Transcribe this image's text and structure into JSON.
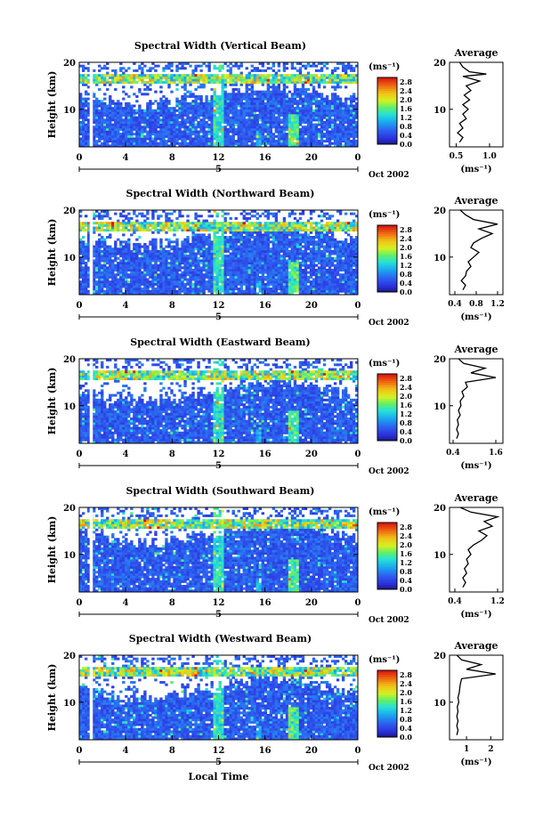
{
  "chart_data": [
    {
      "type": "heatmap",
      "title": "Spectral Width (Vertical Beam)",
      "ylabel": "Height (km)",
      "xlabel": "",
      "x_ticks": [
        "0",
        "4",
        "8",
        "12",
        "16",
        "20",
        "0"
      ],
      "y_ticks": [
        "10",
        "20"
      ],
      "xlim": [
        0,
        24
      ],
      "ylim": [
        2,
        20
      ],
      "date_marker": "5",
      "date_label": "Oct 2002",
      "colorbar": {
        "unit": "(ms⁻¹)",
        "ticks": [
          "0.0",
          "0.4",
          "0.8",
          "1.2",
          "1.6",
          "2.0",
          "2.4",
          "2.8"
        ],
        "min": 0.0,
        "max": 3.0
      },
      "average": {
        "title": "Average",
        "xlabel": "(ms⁻¹)",
        "x_ticks": [
          "0.5",
          "1.0"
        ],
        "xlim": [
          0.4,
          1.2
        ],
        "y_ticks": [
          "10",
          "20"
        ],
        "profile": [
          [
            0.55,
            3
          ],
          [
            0.6,
            4
          ],
          [
            0.52,
            5
          ],
          [
            0.6,
            6
          ],
          [
            0.55,
            7
          ],
          [
            0.65,
            8
          ],
          [
            0.6,
            9
          ],
          [
            0.68,
            10
          ],
          [
            0.6,
            11
          ],
          [
            0.7,
            12
          ],
          [
            0.62,
            13
          ],
          [
            0.72,
            14
          ],
          [
            0.65,
            15
          ],
          [
            0.85,
            16
          ],
          [
            0.6,
            17
          ],
          [
            0.95,
            17.5
          ],
          [
            0.7,
            18
          ],
          [
            0.6,
            19
          ],
          [
            0.55,
            20
          ]
        ]
      }
    },
    {
      "type": "heatmap",
      "title": "Spectral Width (Northward Beam)",
      "ylabel": "Height (km)",
      "xlabel": "",
      "x_ticks": [
        "0",
        "4",
        "8",
        "12",
        "16",
        "20",
        "0"
      ],
      "y_ticks": [
        "10",
        "20"
      ],
      "xlim": [
        0,
        24
      ],
      "ylim": [
        2,
        20
      ],
      "date_marker": "5",
      "date_label": "Oct 2002",
      "colorbar": {
        "unit": "(ms⁻¹)",
        "ticks": [
          "0.0",
          "0.4",
          "0.8",
          "1.2",
          "1.6",
          "2.0",
          "2.4",
          "2.8"
        ],
        "min": 0.0,
        "max": 3.0
      },
      "average": {
        "title": "Average",
        "xlabel": "(ms⁻¹)",
        "x_ticks": [
          "0.4",
          "0.8",
          "1.2"
        ],
        "xlim": [
          0.3,
          1.3
        ],
        "y_ticks": [
          "10",
          "20"
        ],
        "profile": [
          [
            0.55,
            3
          ],
          [
            0.6,
            4
          ],
          [
            0.52,
            5
          ],
          [
            0.6,
            6
          ],
          [
            0.62,
            7
          ],
          [
            0.7,
            8
          ],
          [
            0.65,
            9
          ],
          [
            0.75,
            10
          ],
          [
            0.85,
            11
          ],
          [
            0.7,
            12
          ],
          [
            0.75,
            13
          ],
          [
            0.9,
            14
          ],
          [
            1.1,
            15
          ],
          [
            0.85,
            16
          ],
          [
            1.2,
            17
          ],
          [
            0.75,
            18
          ],
          [
            0.6,
            19
          ],
          [
            0.5,
            20
          ]
        ]
      }
    },
    {
      "type": "heatmap",
      "title": "Spectral Width (Eastward Beam)",
      "ylabel": "Height (km)",
      "xlabel": "",
      "x_ticks": [
        "0",
        "4",
        "8",
        "12",
        "16",
        "20",
        "0"
      ],
      "y_ticks": [
        "10",
        "20"
      ],
      "xlim": [
        0,
        24
      ],
      "ylim": [
        2,
        20
      ],
      "date_marker": "5",
      "date_label": "Oct 2002",
      "colorbar": {
        "unit": "(ms⁻¹)",
        "ticks": [
          "0.0",
          "0.4",
          "0.8",
          "1.2",
          "1.6",
          "2.0",
          "2.4",
          "2.8"
        ],
        "min": 0.0,
        "max": 3.0
      },
      "average": {
        "title": "Average",
        "xlabel": "(ms⁻¹)",
        "x_ticks": [
          "0.4",
          "1.6"
        ],
        "xlim": [
          0.3,
          1.8
        ],
        "y_ticks": [
          "10",
          "20"
        ],
        "profile": [
          [
            0.5,
            3
          ],
          [
            0.55,
            4
          ],
          [
            0.5,
            5
          ],
          [
            0.55,
            6
          ],
          [
            0.52,
            7
          ],
          [
            0.6,
            8
          ],
          [
            0.55,
            9
          ],
          [
            0.62,
            10
          ],
          [
            0.6,
            11
          ],
          [
            0.7,
            12
          ],
          [
            0.65,
            13
          ],
          [
            0.8,
            14
          ],
          [
            0.75,
            15
          ],
          [
            1.6,
            16
          ],
          [
            0.9,
            17
          ],
          [
            1.3,
            18
          ],
          [
            0.7,
            19
          ],
          [
            0.55,
            20
          ]
        ]
      }
    },
    {
      "type": "heatmap",
      "title": "Spectral Width (Southward Beam)",
      "ylabel": "Height (km)",
      "xlabel": "",
      "x_ticks": [
        "0",
        "4",
        "8",
        "12",
        "16",
        "20",
        "0"
      ],
      "y_ticks": [
        "10",
        "20"
      ],
      "xlim": [
        0,
        24
      ],
      "ylim": [
        2,
        20
      ],
      "date_marker": "5",
      "date_label": "Oct 2002",
      "colorbar": {
        "unit": "(ms⁻¹)",
        "ticks": [
          "0.0",
          "0.4",
          "0.8",
          "1.2",
          "1.6",
          "2.0",
          "2.4",
          "2.8"
        ],
        "min": 0.0,
        "max": 3.0
      },
      "average": {
        "title": "Average",
        "xlabel": "(ms⁻¹)",
        "x_ticks": [
          "0.4",
          "1.2"
        ],
        "xlim": [
          0.3,
          1.3
        ],
        "y_ticks": [
          "10",
          "20"
        ],
        "profile": [
          [
            0.55,
            3
          ],
          [
            0.6,
            4
          ],
          [
            0.55,
            5
          ],
          [
            0.62,
            6
          ],
          [
            0.58,
            7
          ],
          [
            0.65,
            8
          ],
          [
            0.62,
            9
          ],
          [
            0.7,
            10
          ],
          [
            0.65,
            11
          ],
          [
            0.75,
            12
          ],
          [
            0.9,
            13
          ],
          [
            1.0,
            14
          ],
          [
            0.85,
            15
          ],
          [
            1.1,
            16
          ],
          [
            0.95,
            17
          ],
          [
            1.2,
            18
          ],
          [
            0.7,
            19
          ],
          [
            0.5,
            20
          ]
        ]
      }
    },
    {
      "type": "heatmap",
      "title": "Spectral Width (Westward Beam)",
      "ylabel": "Height (km)",
      "xlabel": "Local Time",
      "x_ticks": [
        "0",
        "4",
        "8",
        "12",
        "16",
        "20",
        "0"
      ],
      "y_ticks": [
        "10",
        "20"
      ],
      "xlim": [
        0,
        24
      ],
      "ylim": [
        2,
        20
      ],
      "date_marker": "5",
      "date_label": "Oct 2002",
      "colorbar": {
        "unit": "(ms⁻¹)",
        "ticks": [
          "0.0",
          "0.4",
          "0.8",
          "1.2",
          "1.6",
          "2.0",
          "2.4",
          "2.8"
        ],
        "min": 0.0,
        "max": 3.0
      },
      "average": {
        "title": "Average",
        "xlabel": "(ms⁻¹)",
        "x_ticks": [
          "1",
          "2"
        ],
        "xlim": [
          0.3,
          2.5
        ],
        "y_ticks": [
          "10",
          "20"
        ],
        "profile": [
          [
            0.6,
            3
          ],
          [
            0.65,
            4
          ],
          [
            0.6,
            5
          ],
          [
            0.65,
            6
          ],
          [
            0.6,
            7
          ],
          [
            0.65,
            8
          ],
          [
            0.62,
            9
          ],
          [
            0.68,
            10
          ],
          [
            0.65,
            11
          ],
          [
            0.7,
            12
          ],
          [
            0.72,
            13
          ],
          [
            0.75,
            14
          ],
          [
            0.8,
            15
          ],
          [
            2.2,
            16
          ],
          [
            1.0,
            17
          ],
          [
            1.6,
            18
          ],
          [
            0.8,
            19
          ],
          [
            0.6,
            20
          ]
        ]
      }
    }
  ]
}
